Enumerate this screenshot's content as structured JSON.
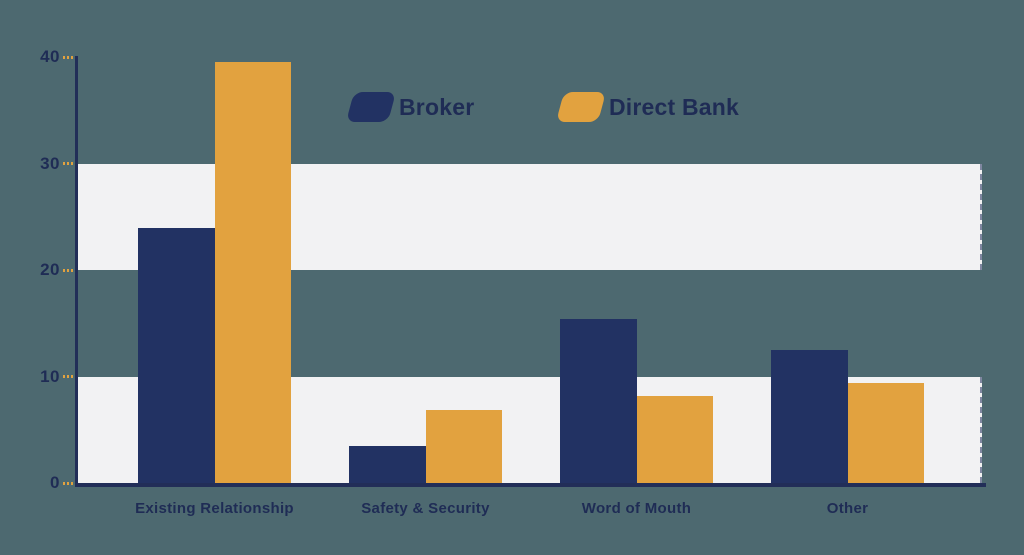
{
  "chart_data": {
    "type": "bar",
    "title": "",
    "categories": [
      "Existing Relationship",
      "Safety & Security",
      "Word of Mouth",
      "Other"
    ],
    "series": [
      {
        "name": "Broker",
        "color": "#223263",
        "values": [
          23.9,
          3.5,
          15.4,
          12.5
        ]
      },
      {
        "name": "Direct Bank",
        "color": "#e2a23f",
        "values": [
          39.5,
          6.9,
          8.2,
          9.4
        ]
      }
    ],
    "xlabel": "",
    "ylabel": "",
    "ylim": [
      0,
      40
    ],
    "yticks": [
      0,
      10,
      20,
      30,
      40
    ],
    "grid_bands": [
      [
        20,
        30
      ],
      [
        0,
        10
      ]
    ],
    "legend_position": "top-center"
  },
  "palette": {
    "background": "#4d6970",
    "band": "#f2f2f3",
    "axis": "#222e58",
    "navy": "#223263",
    "orange": "#e2a23f",
    "text": "#1f2c55"
  }
}
